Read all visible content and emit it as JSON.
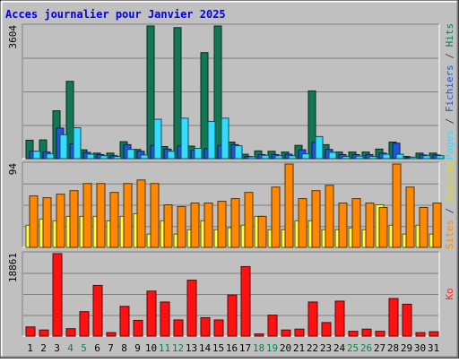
{
  "chart_data": [
    {
      "type": "bar",
      "title": "Acces journalier pour Janvier 2025",
      "panel": "pages-fichiers-hits",
      "y_max_label": "3604",
      "ylim": [
        0,
        3604
      ],
      "axis_label_parts": [
        {
          "text": "Pages",
          "color": "#33ddff"
        },
        {
          "text": " / ",
          "color": "#444444"
        },
        {
          "text": "Fichiers",
          "color": "#2255dd"
        },
        {
          "text": " / ",
          "color": "#444444"
        },
        {
          "text": "Hits",
          "color": "#117755"
        }
      ],
      "categories": [
        "1",
        "2",
        "3",
        "4",
        "5",
        "6",
        "7",
        "8",
        "9",
        "10",
        "11",
        "12",
        "13",
        "14",
        "15",
        "16",
        "17",
        "18",
        "19",
        "20",
        "21",
        "22",
        "23",
        "24",
        "25",
        "26",
        "27",
        "28",
        "29",
        "30",
        "31"
      ],
      "weekend_days": [
        "4",
        "5",
        "11",
        "12",
        "18",
        "19",
        "25",
        "26"
      ],
      "series": [
        {
          "name": "Hits",
          "color": "#117755",
          "values": [
            500,
            510,
            1300,
            2100,
            240,
            150,
            150,
            460,
            250,
            3604,
            330,
            3560,
            340,
            2880,
            3604,
            450,
            120,
            210,
            200,
            180,
            360,
            1840,
            380,
            180,
            180,
            180,
            260,
            450,
            60,
            150,
            150
          ]
        },
        {
          "name": "Fichiers",
          "color": "#2255dd",
          "values": [
            200,
            180,
            830,
            400,
            170,
            110,
            80,
            380,
            200,
            360,
            260,
            350,
            230,
            270,
            360,
            380,
            60,
            110,
            110,
            120,
            240,
            440,
            250,
            110,
            110,
            110,
            150,
            420,
            40,
            100,
            100
          ]
        },
        {
          "name": "Pages",
          "color": "#33ddff",
          "values": [
            200,
            130,
            650,
            840,
            120,
            80,
            60,
            250,
            100,
            1070,
            200,
            1100,
            280,
            1010,
            1100,
            350,
            50,
            90,
            80,
            80,
            130,
            600,
            170,
            60,
            70,
            60,
            120,
            120,
            40,
            80,
            80
          ]
        }
      ]
    },
    {
      "type": "bar",
      "panel": "sites-visites",
      "y_max_label": "94",
      "ylim": [
        0,
        94
      ],
      "axis_label_parts": [
        {
          "text": "Sites",
          "color": "#ff8800"
        },
        {
          "text": " / ",
          "color": "#444444"
        },
        {
          "text": "Visites",
          "color": "#dddd00"
        }
      ],
      "categories": [
        "1",
        "2",
        "3",
        "4",
        "5",
        "6",
        "7",
        "8",
        "9",
        "10",
        "11",
        "12",
        "13",
        "14",
        "15",
        "16",
        "17",
        "18",
        "19",
        "20",
        "21",
        "22",
        "23",
        "24",
        "25",
        "26",
        "27",
        "28",
        "29",
        "30",
        "31"
      ],
      "weekend_days": [
        "4",
        "5",
        "11",
        "12",
        "18",
        "19",
        "25",
        "26"
      ],
      "series": [
        {
          "name": "Visites",
          "color": "#ffff44",
          "values": [
            25,
            32,
            30,
            35,
            35,
            35,
            30,
            35,
            38,
            15,
            30,
            15,
            20,
            30,
            20,
            22,
            25,
            35,
            20,
            20,
            30,
            30,
            20,
            20,
            22,
            20,
            48,
            25,
            15,
            25,
            15
          ]
        },
        {
          "name": "Sites",
          "color": "#ff8800",
          "values": [
            58,
            56,
            60,
            64,
            72,
            72,
            62,
            72,
            76,
            72,
            48,
            46,
            50,
            50,
            52,
            55,
            62,
            35,
            68,
            94,
            55,
            64,
            70,
            50,
            55,
            50,
            45,
            94,
            68,
            45,
            50
          ]
        }
      ]
    },
    {
      "type": "bar",
      "panel": "ko",
      "y_max_label": "18861",
      "ylim": [
        0,
        18861
      ],
      "axis_label_parts": [
        {
          "text": "Ko",
          "color": "#ff2222"
        }
      ],
      "categories": [
        "1",
        "2",
        "3",
        "4",
        "5",
        "6",
        "7",
        "8",
        "9",
        "10",
        "11",
        "12",
        "13",
        "14",
        "15",
        "16",
        "17",
        "18",
        "19",
        "20",
        "21",
        "22",
        "23",
        "24",
        "25",
        "26",
        "27",
        "28",
        "29",
        "30",
        "31"
      ],
      "weekend_days": [
        "4",
        "5",
        "11",
        "12",
        "18",
        "19",
        "25",
        "26"
      ],
      "series": [
        {
          "name": "Ko",
          "color": "#ff1111",
          "values": [
            2100,
            1400,
            18861,
            1700,
            5600,
            11600,
            800,
            6800,
            3600,
            10300,
            7800,
            3700,
            12800,
            4200,
            3700,
            9400,
            15900,
            500,
            4800,
            1400,
            1600,
            7800,
            3100,
            8000,
            1100,
            1600,
            1100,
            8600,
            7300,
            800,
            1000
          ]
        }
      ]
    }
  ]
}
